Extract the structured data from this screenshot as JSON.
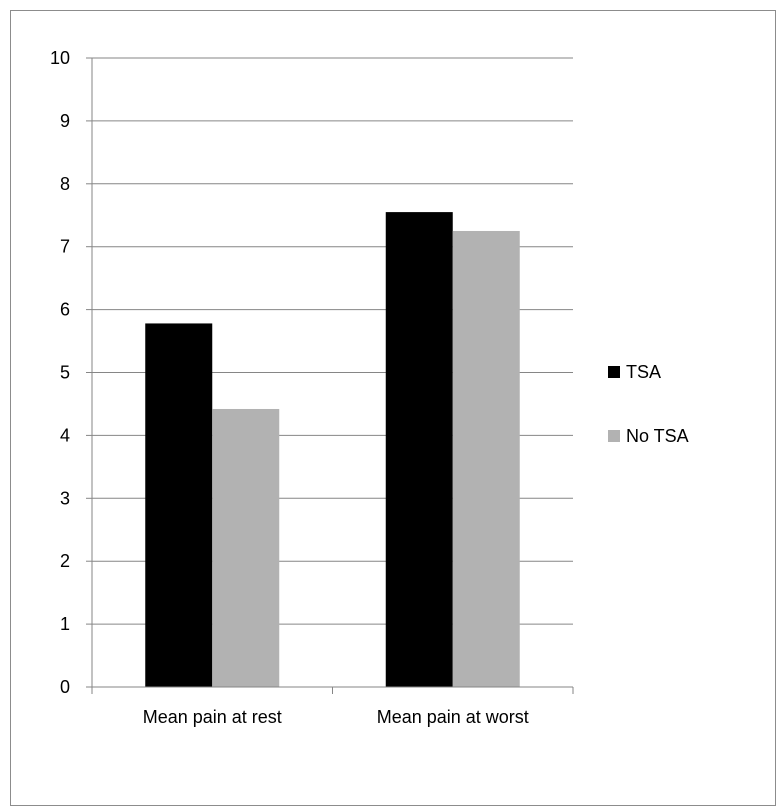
{
  "chart_data": {
    "type": "bar",
    "categories": [
      "Mean pain at rest",
      "Mean pain at worst"
    ],
    "series": [
      {
        "name": "TSA",
        "values": [
          5.78,
          7.55
        ],
        "color": "#000000"
      },
      {
        "name": "No TSA",
        "values": [
          4.42,
          7.25
        ],
        "color": "#b2b2b2"
      }
    ],
    "title": "",
    "xlabel": "",
    "ylabel": "",
    "ylim": [
      0,
      10
    ],
    "yticks": [
      "0",
      "1",
      "2",
      "3",
      "4",
      "5",
      "6",
      "7",
      "8",
      "9",
      "10"
    ],
    "grid": true,
    "legend_position": "right",
    "axis_color": "#868686",
    "grid_color": "#868686"
  }
}
